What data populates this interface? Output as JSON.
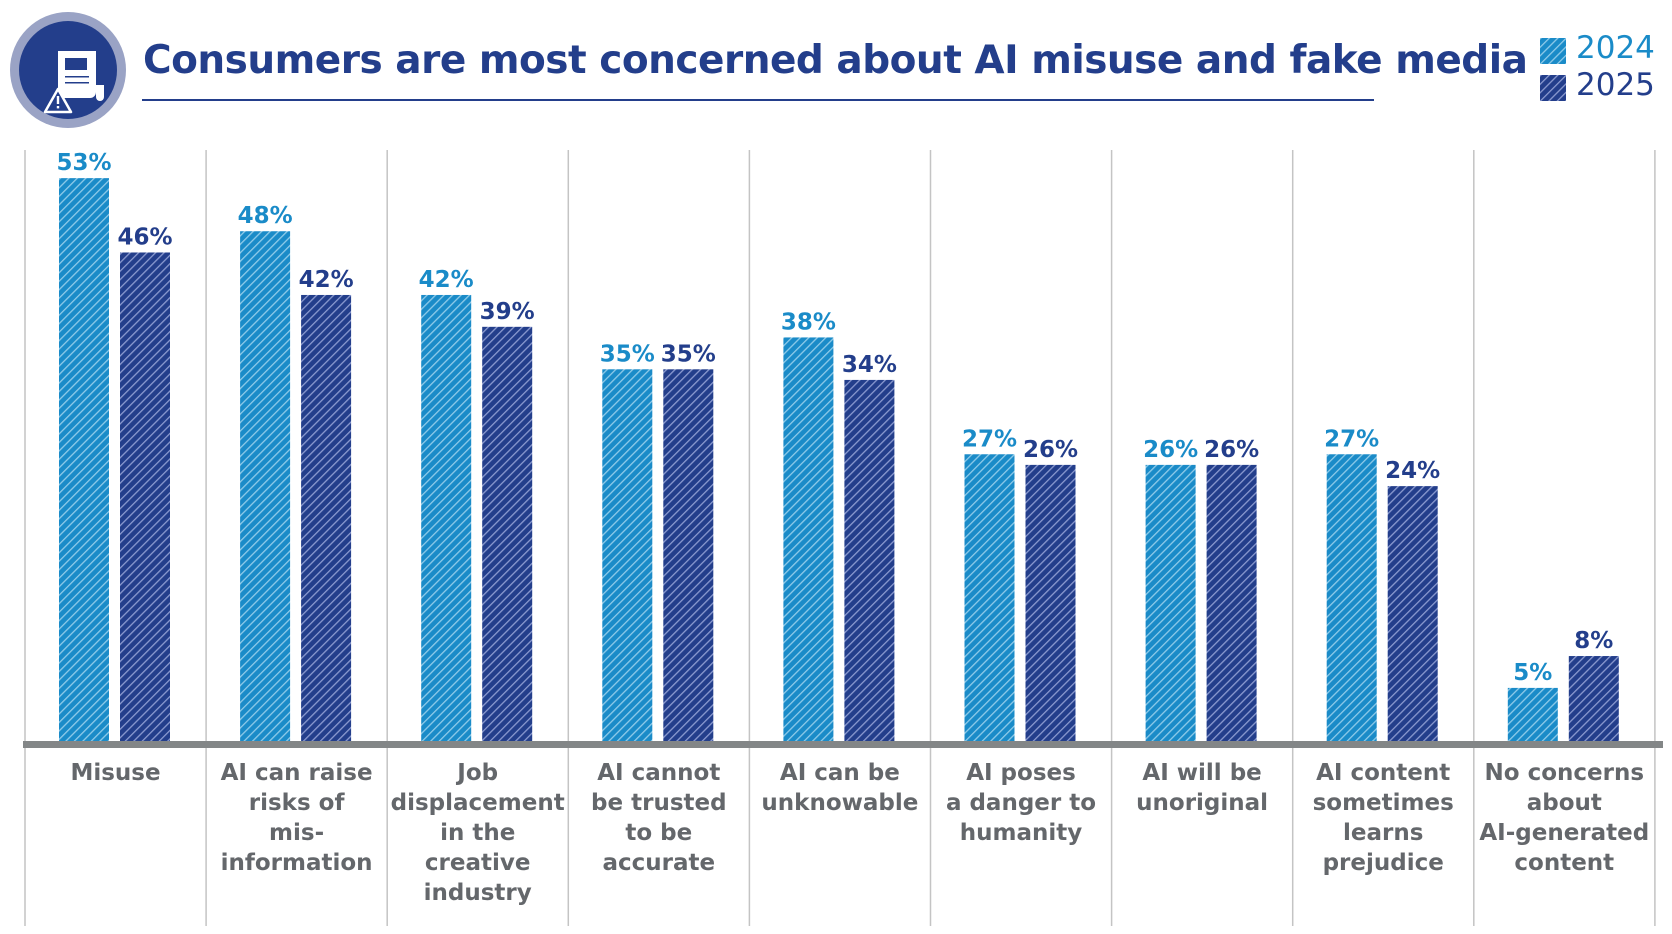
{
  "icon": "document-warning-icon",
  "colors": {
    "2024": "#1a8bc8",
    "2025": "#233e8b",
    "axis": "#838687",
    "grid": "#c4c4c4",
    "label": "#64676b"
  },
  "chart_data": {
    "type": "bar",
    "title": "Consumers are most concerned about AI misuse and fake media",
    "categories": [
      "Misuse",
      "AI can raise\nrisks of\nmis-\ninformation",
      "Job\ndisplacement\nin the\ncreative\nindustry",
      "AI cannot\nbe trusted\nto be\naccurate",
      "AI can be\nunknowable",
      "AI poses\na danger to\nhumanity",
      "AI will be\nunoriginal",
      "AI content\nsometimes\nlearns\nprejudice",
      "No concerns\nabout\nAI-generated\ncontent"
    ],
    "series": [
      {
        "name": "2024",
        "values": [
          53,
          48,
          42,
          35,
          38,
          27,
          26,
          27,
          5
        ],
        "labels": [
          "53%",
          "48%",
          "42%",
          "35%",
          "38%",
          "27%",
          "26%",
          "27%",
          "5%"
        ]
      },
      {
        "name": "2025",
        "values": [
          46,
          42,
          39,
          35,
          34,
          26,
          26,
          24,
          8
        ],
        "labels": [
          "46%",
          "42%",
          "39%",
          "35%",
          "34%",
          "26%",
          "26%",
          "24%",
          "8%"
        ]
      }
    ],
    "unit": "%",
    "ylim": [
      0,
      55
    ],
    "grid": "vertical separators",
    "legend": "top-right",
    "xlabel": "",
    "ylabel": ""
  }
}
